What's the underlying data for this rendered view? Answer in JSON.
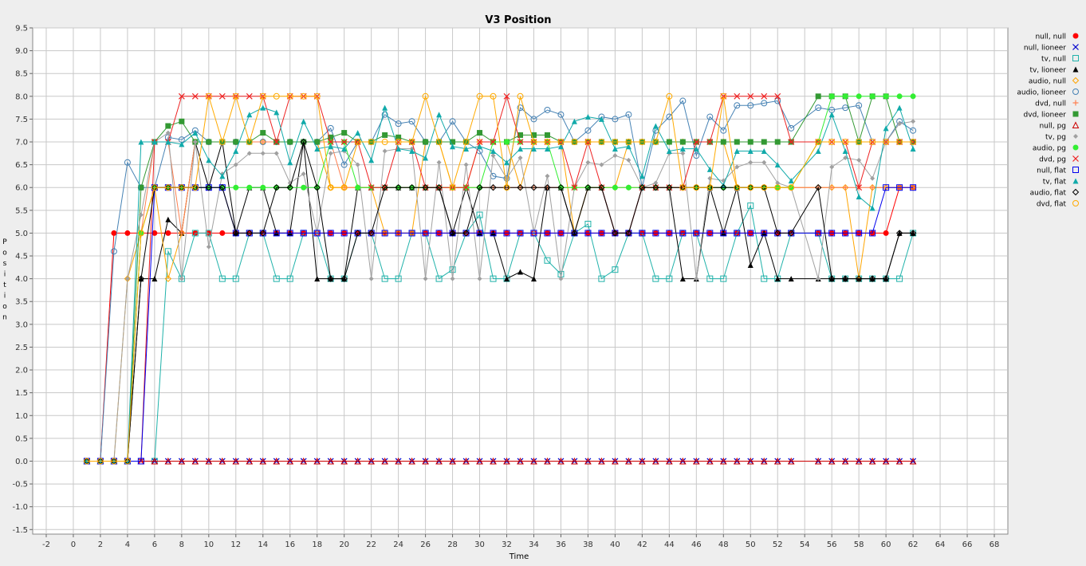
{
  "chart_data": {
    "type": "line",
    "title": "V3 Position",
    "xlabel": "Time",
    "ylabel": "Position",
    "xlim": [
      -3,
      69
    ],
    "ylim": [
      -1.6,
      9.5
    ],
    "x_ticks": [
      -2,
      0,
      2,
      4,
      6,
      8,
      10,
      12,
      14,
      16,
      18,
      20,
      22,
      24,
      26,
      28,
      30,
      32,
      34,
      36,
      38,
      40,
      42,
      44,
      46,
      48,
      50,
      52,
      54,
      56,
      58,
      60,
      62,
      64,
      66,
      68
    ],
    "y_ticks": [
      -1.5,
      -1.0,
      -0.5,
      0.0,
      0.5,
      1.0,
      1.5,
      2.0,
      2.5,
      3.0,
      3.5,
      4.0,
      4.5,
      5.0,
      5.5,
      6.0,
      6.5,
      7.0,
      7.5,
      8.0,
      8.5,
      9.0,
      9.5
    ],
    "grid": true,
    "legend_position": "right",
    "x": [
      1,
      2,
      3,
      4,
      5,
      6,
      7,
      8,
      9,
      10,
      11,
      12,
      13,
      14,
      15,
      16,
      17,
      18,
      19,
      20,
      21,
      22,
      23,
      24,
      25,
      26,
      27,
      28,
      29,
      30,
      31,
      32,
      33,
      34,
      35,
      36,
      37,
      38,
      39,
      40,
      41,
      42,
      43,
      44,
      45,
      46,
      47,
      48,
      49,
      50,
      51,
      52,
      53,
      55,
      56,
      57,
      58,
      59,
      60,
      61,
      62
    ],
    "series": [
      {
        "name": "null, null",
        "color": "#ff0000",
        "marker": "dot",
        "values": [
          0,
          0,
          5,
          5,
          5,
          5,
          5,
          5,
          5,
          5,
          5,
          5,
          5,
          5,
          5,
          5,
          5,
          5,
          5,
          5,
          5,
          5,
          5,
          5,
          5,
          5,
          5,
          5,
          5,
          5,
          5,
          5,
          5,
          5,
          5,
          5,
          5,
          5,
          5,
          5,
          5,
          5,
          5,
          5,
          5,
          5,
          5,
          5,
          5,
          5,
          5,
          5,
          5,
          5,
          5,
          5,
          5,
          5,
          5,
          6,
          6
        ]
      },
      {
        "name": "null, lioneer",
        "color": "#0000cc",
        "marker": "x",
        "values": [
          0,
          0,
          0,
          0,
          0,
          0,
          0,
          0,
          0,
          0,
          0,
          0,
          0,
          0,
          0,
          0,
          0,
          0,
          0,
          0,
          0,
          0,
          0,
          0,
          0,
          0,
          0,
          0,
          0,
          0,
          0,
          0,
          0,
          0,
          0,
          0,
          0,
          0,
          0,
          0,
          0,
          0,
          0,
          0,
          0,
          0,
          0,
          0,
          0,
          0,
          0,
          0,
          0,
          0,
          0,
          0,
          0,
          0,
          0,
          0,
          0
        ]
      },
      {
        "name": "tv, null",
        "color": "#20b2aa",
        "marker": "square",
        "values": [
          0,
          0,
          0,
          0,
          0,
          0,
          4.6,
          4,
          5,
          5,
          4,
          4,
          5,
          5,
          4,
          4,
          5,
          5,
          4,
          4,
          5,
          5,
          4,
          4,
          5,
          5,
          4,
          4.2,
          5,
          5.4,
          4,
          4,
          5,
          5,
          4.4,
          4.1,
          5,
          5.2,
          4,
          4.2,
          5,
          5,
          4,
          4,
          5,
          5,
          4,
          4,
          5,
          5.6,
          4,
          4,
          5,
          5,
          4,
          4,
          4,
          4,
          4,
          4,
          5
        ]
      },
      {
        "name": "tv, lioneer",
        "color": "#000000",
        "marker": "triangle",
        "values": [
          0,
          0,
          0,
          0,
          4,
          4,
          5.3,
          5,
          7,
          6,
          7,
          5,
          6,
          6,
          5,
          5,
          7,
          4,
          4,
          4,
          6,
          6,
          6,
          6,
          6,
          6,
          6,
          5,
          6,
          5,
          5,
          4,
          4.15,
          4,
          6,
          6,
          5,
          6,
          6,
          5,
          5,
          6,
          6,
          6,
          4,
          4,
          6,
          5,
          6,
          4.3,
          5,
          4,
          4,
          4,
          4,
          4,
          4,
          4,
          4,
          5,
          5
        ]
      },
      {
        "name": "audio, null",
        "color": "#ffa500",
        "marker": "diamond",
        "values": [
          0,
          0,
          0,
          4,
          5,
          6,
          4,
          5,
          7,
          7,
          7,
          7,
          7,
          7,
          7,
          7,
          7,
          7,
          6,
          6,
          6,
          6,
          5,
          5,
          5,
          7,
          7,
          6,
          6,
          7,
          7,
          7,
          6,
          7,
          7,
          7,
          5,
          6,
          6,
          6,
          7,
          7,
          7,
          7,
          7,
          7,
          7,
          7,
          6,
          6,
          6,
          6,
          6,
          6,
          6,
          6,
          4,
          6,
          6,
          6,
          6
        ]
      },
      {
        "name": "audio, lioneer",
        "color": "#4682b4",
        "marker": "circle",
        "values": [
          0,
          0,
          4.6,
          6.55,
          6,
          6,
          7.1,
          7.05,
          7.25,
          7,
          7,
          7,
          7,
          7,
          7,
          7,
          7,
          7,
          7.3,
          6.5,
          7,
          7,
          7.6,
          7.4,
          7.45,
          7,
          7,
          7.45,
          7,
          6.8,
          6.25,
          6.2,
          7.75,
          7.5,
          7.7,
          7.6,
          7,
          7.25,
          7.55,
          7.5,
          7.6,
          6,
          7.25,
          7.55,
          7.9,
          6.7,
          7.55,
          7.25,
          7.8,
          7.8,
          7.85,
          7.9,
          7.3,
          7.75,
          7.7,
          7.75,
          7.8,
          7,
          7,
          7.45,
          7.25
        ]
      },
      {
        "name": "dvd, null",
        "color": "#ff7f50",
        "marker": "plus",
        "values": [
          0,
          0,
          0,
          0,
          5,
          7,
          7,
          5,
          7,
          7,
          7,
          7,
          7,
          7,
          7,
          7,
          7,
          7,
          7,
          6,
          6,
          6,
          6,
          6,
          6,
          6,
          6,
          6,
          6,
          6,
          6,
          6,
          6,
          6,
          6,
          6,
          6,
          6,
          6,
          6,
          6,
          6,
          6,
          6,
          6,
          6,
          6,
          6,
          6,
          6,
          6,
          6,
          6,
          6,
          6,
          6,
          6,
          6,
          6,
          6,
          6
        ]
      },
      {
        "name": "dvd, lioneer",
        "color": "#339933",
        "marker": "filled-square",
        "values": [
          0,
          0,
          0,
          0,
          6,
          7,
          7.35,
          7.45,
          7,
          7,
          7,
          7,
          7,
          7.2,
          7,
          7,
          7,
          7,
          7.1,
          7.2,
          7,
          7,
          7.15,
          7.1,
          7,
          7,
          7,
          7,
          7,
          7.2,
          7,
          7,
          7.15,
          7.15,
          7.15,
          7,
          7,
          7,
          7,
          7,
          7,
          7,
          7,
          7,
          7,
          7,
          7,
          7,
          7,
          7,
          7,
          7,
          7,
          8,
          8,
          8,
          7,
          8,
          8,
          7,
          7
        ]
      },
      {
        "name": "null, pg",
        "color": "#cc0000",
        "marker": "open-triangle",
        "values": [
          0,
          0,
          0,
          0,
          0,
          0,
          0,
          0,
          0,
          0,
          0,
          0,
          0,
          0,
          0,
          0,
          0,
          0,
          0,
          0,
          0,
          0,
          0,
          0,
          0,
          0,
          0,
          0,
          0,
          0,
          0,
          0,
          0,
          0,
          0,
          0,
          0,
          0,
          0,
          0,
          0,
          0,
          0,
          0,
          0,
          0,
          0,
          0,
          0,
          0,
          0,
          0,
          0,
          0,
          0,
          0,
          0,
          0,
          0,
          0,
          0
        ]
      },
      {
        "name": "tv, pg",
        "color": "#a0a0a0",
        "marker": "small-diamond",
        "values": [
          0,
          0,
          0,
          4,
          5.4,
          7,
          7.2,
          4,
          7,
          4.7,
          6.3,
          6.5,
          6.75,
          6.75,
          6.75,
          6.1,
          6.3,
          5,
          6.75,
          6.8,
          6.5,
          4,
          6.8,
          6.85,
          6.85,
          4,
          6.55,
          4,
          6.5,
          4,
          6.7,
          6.2,
          6.65,
          5,
          6.25,
          4,
          6,
          6.55,
          6.5,
          6.7,
          6.6,
          6,
          6.1,
          6.75,
          6.75,
          4,
          6.2,
          6.15,
          6.45,
          6.55,
          6.55,
          6.1,
          6,
          4,
          6.45,
          6.65,
          6.6,
          6.2,
          7,
          7.4,
          7.45
        ]
      },
      {
        "name": "audio, pg",
        "color": "#33ee33",
        "marker": "filled-circle",
        "values": [
          0,
          0,
          0,
          0,
          5,
          6,
          6,
          6,
          6,
          6,
          6,
          6,
          6,
          6,
          6,
          6,
          6,
          6,
          7,
          7,
          6,
          6,
          6,
          6,
          6,
          6,
          6,
          6,
          6,
          6,
          7,
          7,
          7,
          7,
          7,
          6,
          6,
          6,
          6,
          6,
          6,
          6,
          6,
          6,
          6,
          6,
          6,
          6,
          6,
          6,
          6,
          6,
          6,
          7,
          8,
          8,
          8,
          8,
          8,
          8,
          8
        ]
      },
      {
        "name": "dvd, pg",
        "color": "#ee2222",
        "marker": "x",
        "values": [
          0,
          0,
          0,
          0,
          0,
          7,
          7,
          8,
          8,
          8,
          8,
          8,
          8,
          8,
          7,
          8,
          8,
          8,
          7,
          7,
          7,
          6,
          6,
          7,
          7,
          6,
          6,
          6,
          6,
          7,
          7,
          8,
          7,
          7,
          7,
          7,
          6,
          7,
          6,
          5,
          5,
          6,
          6,
          6,
          6,
          7,
          7,
          8,
          8,
          8,
          8,
          8,
          7,
          7,
          7,
          7,
          6,
          7,
          7,
          7,
          7
        ]
      },
      {
        "name": "null, flat",
        "color": "#0000ee",
        "marker": "open-square",
        "values": [
          0,
          0,
          0,
          0,
          0,
          6,
          6,
          6,
          6,
          6,
          6,
          5,
          5,
          5,
          5,
          5,
          5,
          5,
          5,
          5,
          5,
          5,
          5,
          5,
          5,
          5,
          5,
          5,
          5,
          5,
          5,
          5,
          5,
          5,
          5,
          5,
          5,
          5,
          5,
          5,
          5,
          5,
          5,
          5,
          5,
          5,
          5,
          5,
          5,
          5,
          5,
          5,
          5,
          5,
          5,
          5,
          5,
          5,
          6,
          6,
          6
        ]
      },
      {
        "name": "tv, flat",
        "color": "#11aaaa",
        "marker": "filled-triangle",
        "values": [
          0,
          0,
          0,
          0,
          7,
          7,
          7,
          6.95,
          7.2,
          6.6,
          6.25,
          6.8,
          7.6,
          7.75,
          7.65,
          6.55,
          7.45,
          6.85,
          6.9,
          6.85,
          7.2,
          6.6,
          7.75,
          6.85,
          6.8,
          6.65,
          7.6,
          6.9,
          6.85,
          6.9,
          6.8,
          6.55,
          6.85,
          6.85,
          6.85,
          6.9,
          7.45,
          7.55,
          7.5,
          6.85,
          6.9,
          6.25,
          7.35,
          6.8,
          6.85,
          6.85,
          6.4,
          6.05,
          6.8,
          6.8,
          6.8,
          6.5,
          6.15,
          6.8,
          7.6,
          6.8,
          5.8,
          5.55,
          7.3,
          7.75,
          6.85
        ]
      },
      {
        "name": "audio, flat",
        "color": "#000000",
        "marker": "open-diamond",
        "values": [
          0,
          0,
          0,
          0,
          4,
          6,
          6,
          6,
          6,
          6,
          6,
          5,
          5,
          5,
          6,
          6,
          7,
          6,
          4,
          4,
          5,
          5,
          6,
          6,
          6,
          6,
          6,
          5,
          5,
          6,
          6,
          6,
          6,
          6,
          6,
          6,
          5,
          6,
          6,
          5,
          5,
          6,
          6,
          6,
          6,
          6,
          6,
          6,
          6,
          6,
          6,
          5,
          5,
          6,
          4,
          4,
          4,
          4,
          4,
          5,
          5
        ]
      },
      {
        "name": "dvd, flat",
        "color": "#ffaa00",
        "marker": "open-circle",
        "values": [
          0,
          0,
          0,
          0,
          5,
          6,
          6,
          6,
          6,
          8,
          7,
          8,
          7,
          8,
          8,
          8,
          8,
          8,
          6,
          6,
          7,
          7,
          7,
          7,
          7,
          8,
          7,
          6,
          7,
          8,
          8,
          6,
          8,
          7,
          7,
          7,
          7,
          7,
          7,
          7,
          7,
          7,
          7,
          8,
          6,
          6,
          6,
          8,
          6,
          6,
          6,
          6,
          6,
          7,
          7,
          7,
          7,
          7,
          7,
          7,
          7
        ]
      }
    ]
  }
}
